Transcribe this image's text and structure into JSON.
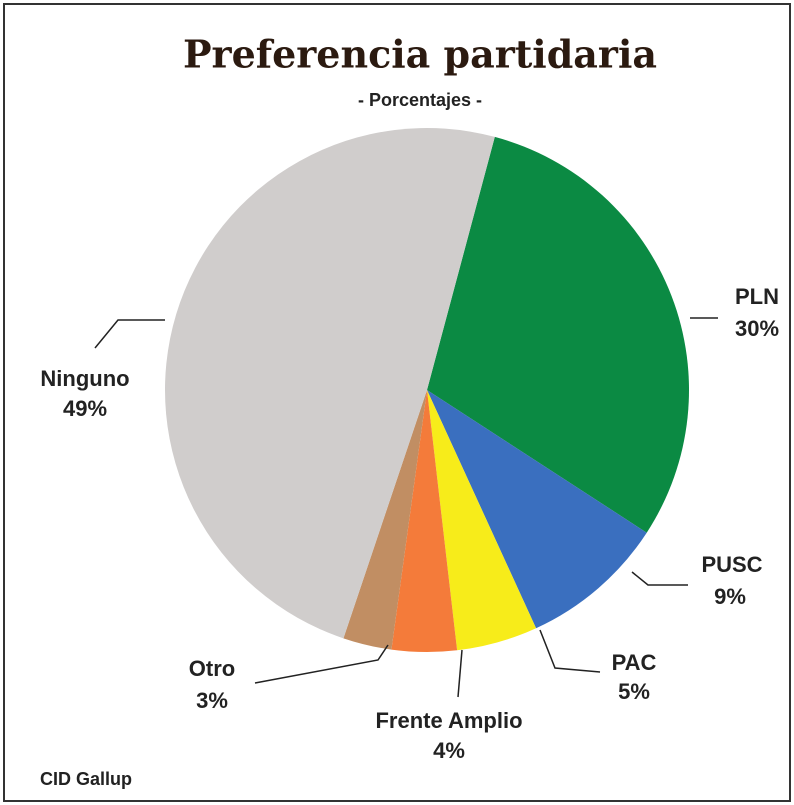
{
  "chart_data": {
    "type": "pie",
    "title": "Preferencia partidaria",
    "subtitle": "- Porcentajes -",
    "categories": [
      "PLN",
      "PUSC",
      "PAC",
      "Frente Amplio",
      "Otro",
      "Ninguno"
    ],
    "values": [
      30,
      9,
      5,
      4,
      3,
      49
    ],
    "value_labels": [
      "30%",
      "9%",
      "5%",
      "4%",
      "3%",
      "49%"
    ],
    "colors": [
      "#0b8a43",
      "#3a6fbf",
      "#f7ec1a",
      "#f47b3a",
      "#c18e63",
      "#d0cdcc"
    ],
    "source": "CID Gallup"
  }
}
